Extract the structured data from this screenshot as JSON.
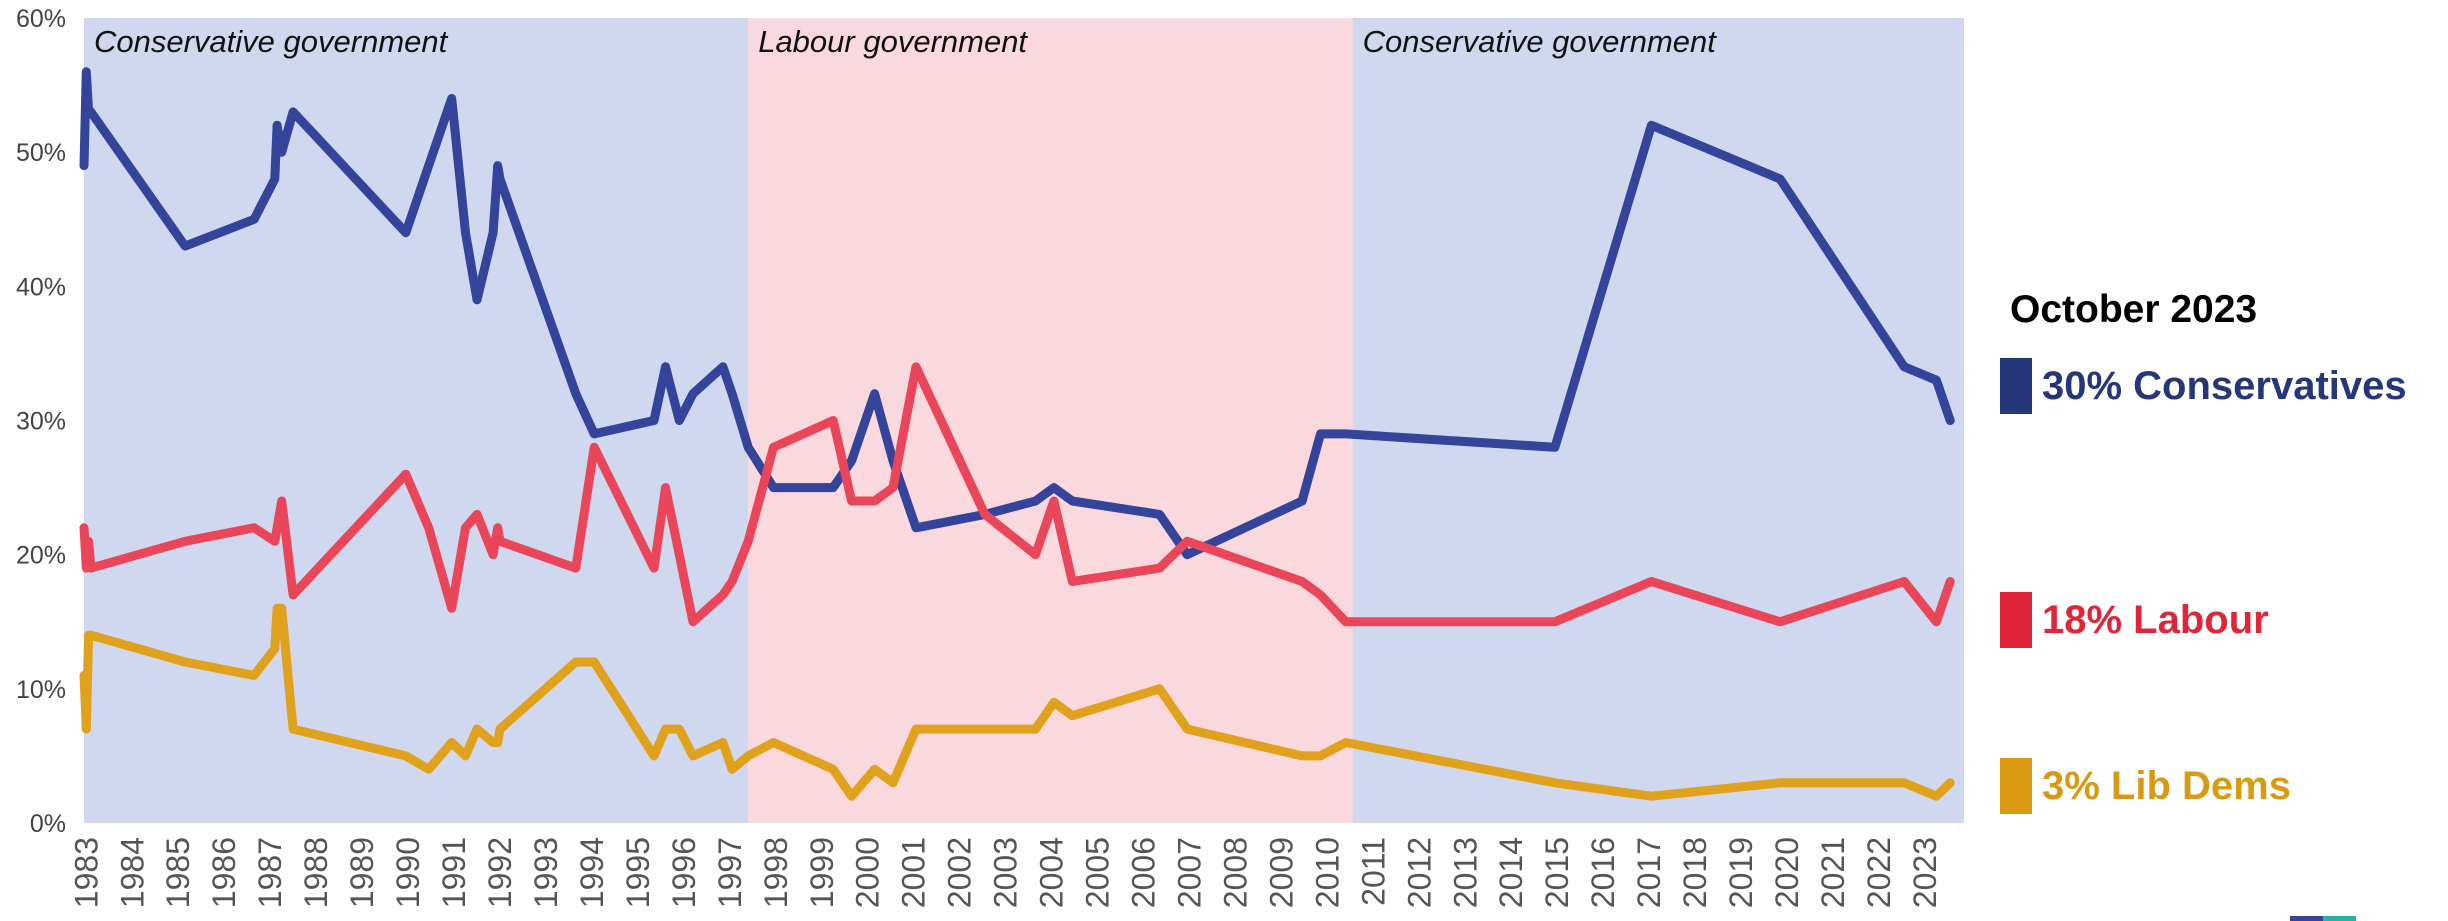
{
  "chart_data": {
    "type": "line",
    "title": "",
    "xlabel": "",
    "ylabel": "",
    "ylim": [
      0,
      60
    ],
    "xlim": [
      1983.0,
      2023.9
    ],
    "y_ticks": [
      "0%",
      "10%",
      "20%",
      "30%",
      "40%",
      "50%",
      "60%"
    ],
    "x_ticks": [
      "1983",
      "1984",
      "1985",
      "1986",
      "1987",
      "1988",
      "1989",
      "1990",
      "1991",
      "1992",
      "1993",
      "1994",
      "1995",
      "1996",
      "1997",
      "1998",
      "1999",
      "2000",
      "2001",
      "2002",
      "2003",
      "2004",
      "2005",
      "2006",
      "2007",
      "2008",
      "2009",
      "2010",
      "2011",
      "2012",
      "2013",
      "2014",
      "2015",
      "2016",
      "2017",
      "2018",
      "2019",
      "2020",
      "2021",
      "2022",
      "2023"
    ],
    "grid": false,
    "periods": [
      {
        "label": "Conservative government",
        "start": 1983.0,
        "end": 1997.45,
        "color": "#d0d8f0"
      },
      {
        "label": "Labour government",
        "start": 1997.45,
        "end": 2010.6,
        "color": "#fad9de"
      },
      {
        "label": "Conservative government",
        "start": 2010.6,
        "end": 2023.9,
        "color": "#d0d8f0"
      }
    ],
    "series": [
      {
        "name": "Conservatives",
        "color": "#33449a",
        "x": [
          1983.0,
          1983.05,
          1983.1,
          1983.15,
          1985.2,
          1986.7,
          1987.15,
          1987.2,
          1987.3,
          1987.55,
          1990.0,
          1990.5,
          1991.0,
          1991.3,
          1991.55,
          1991.9,
          1992.0,
          1992.05,
          1993.7,
          1994.1,
          1995.4,
          1995.65,
          1995.95,
          1996.25,
          1996.9,
          1997.1,
          1997.45,
          1998.0,
          1999.3,
          1999.7,
          2000.2,
          2000.6,
          2001.1,
          2002.6,
          2003.7,
          2004.1,
          2004.5,
          2006.4,
          2007.0,
          2009.5,
          2009.9,
          2010.45,
          2015.0,
          2017.1,
          2019.9,
          2022.6,
          2023.3,
          2023.6
        ],
        "y": [
          49,
          56,
          53,
          53,
          43,
          45,
          48,
          52,
          50,
          53,
          44,
          49,
          54,
          44,
          39,
          44,
          49,
          48,
          32,
          29,
          30,
          34,
          30,
          32,
          34,
          32,
          28,
          25,
          25,
          27,
          32,
          27,
          22,
          23,
          24,
          25,
          24,
          23,
          20,
          24,
          29,
          29,
          28,
          52,
          48,
          34,
          33,
          30
        ]
      },
      {
        "name": "Labour",
        "color": "#ea4659",
        "x": [
          1983.0,
          1983.05,
          1983.1,
          1983.15,
          1985.2,
          1986.7,
          1987.15,
          1987.3,
          1987.55,
          1990.0,
          1990.5,
          1991.0,
          1991.3,
          1991.55,
          1991.9,
          1992.0,
          1992.05,
          1993.7,
          1994.1,
          1995.4,
          1995.65,
          1995.95,
          1996.25,
          1996.9,
          1997.1,
          1997.45,
          1998.0,
          1999.3,
          1999.7,
          2000.2,
          2000.6,
          2001.1,
          2002.6,
          2003.7,
          2004.1,
          2004.5,
          2006.4,
          2007.0,
          2009.5,
          2009.9,
          2010.45,
          2015.0,
          2017.1,
          2019.9,
          2022.6,
          2023.3,
          2023.6
        ],
        "y": [
          22,
          19,
          21,
          19,
          21,
          22,
          21,
          24,
          17,
          26,
          22,
          16,
          22,
          23,
          20,
          22,
          21,
          19,
          28,
          19,
          25,
          20,
          15,
          17,
          18,
          21,
          28,
          30,
          24,
          24,
          25,
          34,
          23,
          20,
          24,
          18,
          19,
          21,
          18,
          17,
          15,
          15,
          18,
          15,
          18,
          15,
          18
        ]
      },
      {
        "name": "Lib Dems",
        "color": "#e0a11c",
        "x": [
          1983.0,
          1983.05,
          1983.1,
          1983.15,
          1985.2,
          1986.7,
          1987.15,
          1987.2,
          1987.3,
          1987.55,
          1990.0,
          1990.5,
          1991.0,
          1991.3,
          1991.55,
          1991.9,
          1992.0,
          1992.05,
          1993.7,
          1994.1,
          1995.4,
          1995.65,
          1995.95,
          1996.25,
          1996.9,
          1997.1,
          1997.45,
          1998.0,
          1999.3,
          1999.7,
          2000.2,
          2000.6,
          2001.1,
          2002.6,
          2003.7,
          2004.1,
          2004.5,
          2006.4,
          2007.0,
          2009.5,
          2009.9,
          2010.45,
          2015.0,
          2017.1,
          2019.9,
          2022.6,
          2023.3,
          2023.6
        ],
        "y": [
          11,
          7,
          14,
          14,
          12,
          11,
          13,
          16,
          16,
          7,
          5,
          4,
          6,
          5,
          7,
          6,
          6,
          7,
          12,
          12,
          5,
          7,
          7,
          5,
          6,
          4,
          5,
          6,
          4,
          2,
          4,
          3,
          7,
          7,
          7,
          9,
          8,
          10,
          7,
          5,
          5,
          6,
          3,
          2,
          3,
          3,
          2,
          3
        ]
      }
    ]
  },
  "legend": {
    "title": "October 2023",
    "items": [
      {
        "text": "30% Conservatives",
        "color": "#26367a"
      },
      {
        "text": "18% Labour",
        "color": "#e0253a"
      },
      {
        "text": "3% Lib Dems",
        "color": "#d99a12"
      }
    ]
  }
}
